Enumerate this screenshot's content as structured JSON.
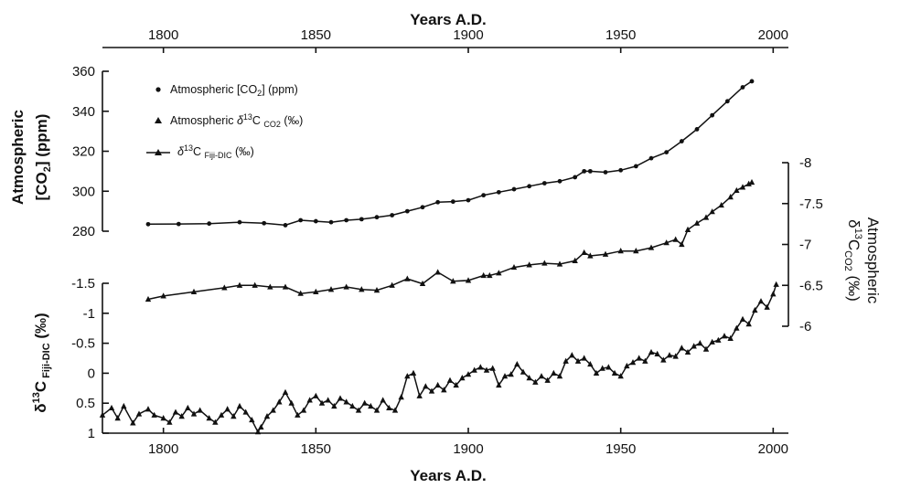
{
  "chart_data": {
    "type": "line",
    "x_axis": {
      "label": "Years A.D.",
      "range": [
        1780,
        2005
      ],
      "ticks": [
        1800,
        1850,
        1900,
        1950,
        2000
      ],
      "tick_labels": [
        "1800",
        "1850",
        "1900",
        "1950",
        "2000"
      ]
    },
    "left_top_axis": {
      "label_line1": "Atmospheric",
      "label_line2_pre": "[CO",
      "label_line2_sub": "2",
      "label_line2_post": "] (ppm)",
      "range": [
        280,
        360
      ],
      "ticks": [
        280,
        300,
        320,
        340,
        360
      ],
      "tick_labels": [
        "280",
        "300",
        "320",
        "340",
        "360"
      ]
    },
    "left_bottom_axis": {
      "label_pre": "δ",
      "label_sup": "13",
      "label_mid": "C",
      "label_sub": " Fiji-DIC",
      "label_post": " (‰)",
      "reversed": true,
      "range": [
        1,
        -1.5
      ],
      "ticks": [
        1,
        0.5,
        0,
        -0.5,
        -1,
        -1.5
      ],
      "tick_labels": [
        "1",
        "0.5",
        "0",
        "-0.5",
        "-1",
        "-1.5"
      ]
    },
    "right_axis": {
      "label_line1": "Atmospheric",
      "label_pre": "δ",
      "label_sup": "13",
      "label_mid": "C",
      "label_sub": "CO2",
      "label_post": " (‰)",
      "reversed": true,
      "range": [
        -6,
        -8
      ],
      "ticks": [
        -6,
        -6.5,
        -7,
        -7.5,
        -8
      ],
      "tick_labels": [
        "-6",
        "-6.5",
        "-7",
        "-7.5",
        "-8"
      ]
    },
    "legend": {
      "placement": "top-left",
      "entries": [
        {
          "pre": "Atmospheric [CO",
          "sub": "2",
          "post": "] (ppm)"
        },
        {
          "pre": "Atmospheric ",
          "greek": "δ",
          "sup": "13",
          "mid": "C ",
          "sub": "CO2",
          "post": " (‰)"
        },
        {
          "pre": "",
          "greek": "δ",
          "sup": "13",
          "mid": "C ",
          "sub": "Fiji-DIC",
          "post": " (‰)"
        }
      ]
    },
    "series": [
      {
        "name": "Atmospheric [CO2] (ppm)",
        "axis": "left_top",
        "marker": "circle",
        "points": [
          [
            1795,
            283.5
          ],
          [
            1805,
            283.6
          ],
          [
            1815,
            283.8
          ],
          [
            1825,
            284.5
          ],
          [
            1833,
            284
          ],
          [
            1840,
            283
          ],
          [
            1845,
            285.5
          ],
          [
            1850,
            285
          ],
          [
            1855,
            284.5
          ],
          [
            1860,
            285.5
          ],
          [
            1865,
            286
          ],
          [
            1870,
            287
          ],
          [
            1875,
            288
          ],
          [
            1880,
            290
          ],
          [
            1885,
            292
          ],
          [
            1890,
            294.5
          ],
          [
            1895,
            294.8
          ],
          [
            1900,
            295.5
          ],
          [
            1905,
            298
          ],
          [
            1910,
            299.5
          ],
          [
            1915,
            301
          ],
          [
            1920,
            302.5
          ],
          [
            1925,
            304
          ],
          [
            1930,
            305
          ],
          [
            1935,
            307
          ],
          [
            1938,
            310
          ],
          [
            1940,
            310
          ],
          [
            1945,
            309.5
          ],
          [
            1950,
            310.5
          ],
          [
            1955,
            312.5
          ],
          [
            1960,
            316.5
          ],
          [
            1965,
            319.5
          ],
          [
            1970,
            325
          ],
          [
            1975,
            331
          ],
          [
            1980,
            338
          ],
          [
            1985,
            345
          ],
          [
            1990,
            352
          ],
          [
            1993,
            355
          ]
        ]
      },
      {
        "name": "Atmospheric δ13C CO2 (‰)",
        "axis": "right",
        "marker": "triangle",
        "points": [
          [
            1795,
            -6.33
          ],
          [
            1800,
            -6.37
          ],
          [
            1810,
            -6.42
          ],
          [
            1820,
            -6.47
          ],
          [
            1825,
            -6.5
          ],
          [
            1830,
            -6.5
          ],
          [
            1835,
            -6.48
          ],
          [
            1840,
            -6.48
          ],
          [
            1845,
            -6.4
          ],
          [
            1850,
            -6.42
          ],
          [
            1855,
            -6.45
          ],
          [
            1860,
            -6.48
          ],
          [
            1865,
            -6.45
          ],
          [
            1870,
            -6.44
          ],
          [
            1875,
            -6.5
          ],
          [
            1880,
            -6.58
          ],
          [
            1885,
            -6.52
          ],
          [
            1890,
            -6.66
          ],
          [
            1895,
            -6.55
          ],
          [
            1900,
            -6.56
          ],
          [
            1905,
            -6.62
          ],
          [
            1907,
            -6.62
          ],
          [
            1910,
            -6.65
          ],
          [
            1915,
            -6.72
          ],
          [
            1920,
            -6.75
          ],
          [
            1925,
            -6.77
          ],
          [
            1930,
            -6.76
          ],
          [
            1935,
            -6.8
          ],
          [
            1938,
            -6.9
          ],
          [
            1940,
            -6.86
          ],
          [
            1945,
            -6.88
          ],
          [
            1950,
            -6.92
          ],
          [
            1955,
            -6.92
          ],
          [
            1960,
            -6.96
          ],
          [
            1965,
            -7.02
          ],
          [
            1968,
            -7.06
          ],
          [
            1970,
            -7.0
          ],
          [
            1972,
            -7.18
          ],
          [
            1975,
            -7.26
          ],
          [
            1978,
            -7.33
          ],
          [
            1980,
            -7.4
          ],
          [
            1983,
            -7.48
          ],
          [
            1986,
            -7.58
          ],
          [
            1988,
            -7.66
          ],
          [
            1990,
            -7.7
          ],
          [
            1992,
            -7.74
          ],
          [
            1993,
            -7.76
          ]
        ]
      },
      {
        "name": "δ13C Fiji-DIC (‰)",
        "axis": "left_bottom",
        "marker": "triangle",
        "points": [
          [
            1780,
            0.7
          ],
          [
            1783,
            0.58
          ],
          [
            1785,
            0.75
          ],
          [
            1787,
            0.55
          ],
          [
            1790,
            0.83
          ],
          [
            1792,
            0.68
          ],
          [
            1795,
            0.6
          ],
          [
            1797,
            0.7
          ],
          [
            1800,
            0.75
          ],
          [
            1802,
            0.82
          ],
          [
            1804,
            0.65
          ],
          [
            1806,
            0.72
          ],
          [
            1808,
            0.58
          ],
          [
            1810,
            0.68
          ],
          [
            1812,
            0.62
          ],
          [
            1815,
            0.75
          ],
          [
            1817,
            0.82
          ],
          [
            1819,
            0.7
          ],
          [
            1821,
            0.6
          ],
          [
            1823,
            0.72
          ],
          [
            1825,
            0.55
          ],
          [
            1827,
            0.65
          ],
          [
            1829,
            0.78
          ],
          [
            1831,
            0.98
          ],
          [
            1832,
            0.9
          ],
          [
            1834,
            0.72
          ],
          [
            1836,
            0.62
          ],
          [
            1838,
            0.48
          ],
          [
            1840,
            0.32
          ],
          [
            1842,
            0.5
          ],
          [
            1844,
            0.7
          ],
          [
            1846,
            0.62
          ],
          [
            1848,
            0.45
          ],
          [
            1850,
            0.38
          ],
          [
            1852,
            0.5
          ],
          [
            1854,
            0.45
          ],
          [
            1856,
            0.55
          ],
          [
            1858,
            0.42
          ],
          [
            1860,
            0.48
          ],
          [
            1862,
            0.55
          ],
          [
            1864,
            0.62
          ],
          [
            1866,
            0.5
          ],
          [
            1868,
            0.55
          ],
          [
            1870,
            0.62
          ],
          [
            1872,
            0.45
          ],
          [
            1874,
            0.58
          ],
          [
            1876,
            0.62
          ],
          [
            1878,
            0.4
          ],
          [
            1880,
            0.05
          ],
          [
            1882,
            0.0
          ],
          [
            1884,
            0.38
          ],
          [
            1886,
            0.22
          ],
          [
            1888,
            0.3
          ],
          [
            1890,
            0.2
          ],
          [
            1892,
            0.28
          ],
          [
            1894,
            0.12
          ],
          [
            1896,
            0.2
          ],
          [
            1898,
            0.08
          ],
          [
            1900,
            0.02
          ],
          [
            1902,
            -0.05
          ],
          [
            1904,
            -0.1
          ],
          [
            1906,
            -0.05
          ],
          [
            1908,
            -0.08
          ],
          [
            1910,
            0.2
          ],
          [
            1912,
            0.05
          ],
          [
            1914,
            0.02
          ],
          [
            1916,
            -0.15
          ],
          [
            1918,
            -0.02
          ],
          [
            1920,
            0.08
          ],
          [
            1922,
            0.15
          ],
          [
            1924,
            0.05
          ],
          [
            1926,
            0.12
          ],
          [
            1928,
            0.0
          ],
          [
            1930,
            0.05
          ],
          [
            1932,
            -0.2
          ],
          [
            1934,
            -0.3
          ],
          [
            1936,
            -0.2
          ],
          [
            1938,
            -0.25
          ],
          [
            1940,
            -0.15
          ],
          [
            1942,
            0.0
          ],
          [
            1944,
            -0.08
          ],
          [
            1946,
            -0.1
          ],
          [
            1948,
            0.0
          ],
          [
            1950,
            0.05
          ],
          [
            1952,
            -0.12
          ],
          [
            1954,
            -0.18
          ],
          [
            1956,
            -0.25
          ],
          [
            1958,
            -0.2
          ],
          [
            1960,
            -0.35
          ],
          [
            1962,
            -0.32
          ],
          [
            1964,
            -0.22
          ],
          [
            1966,
            -0.3
          ],
          [
            1968,
            -0.28
          ],
          [
            1970,
            -0.42
          ],
          [
            1972,
            -0.35
          ],
          [
            1974,
            -0.45
          ],
          [
            1976,
            -0.5
          ],
          [
            1978,
            -0.4
          ],
          [
            1980,
            -0.52
          ],
          [
            1982,
            -0.55
          ],
          [
            1984,
            -0.62
          ],
          [
            1986,
            -0.58
          ],
          [
            1988,
            -0.75
          ],
          [
            1990,
            -0.9
          ],
          [
            1992,
            -0.82
          ],
          [
            1994,
            -1.05
          ],
          [
            1996,
            -1.2
          ],
          [
            1998,
            -1.1
          ],
          [
            2000,
            -1.32
          ],
          [
            2001,
            -1.48
          ]
        ]
      }
    ]
  }
}
